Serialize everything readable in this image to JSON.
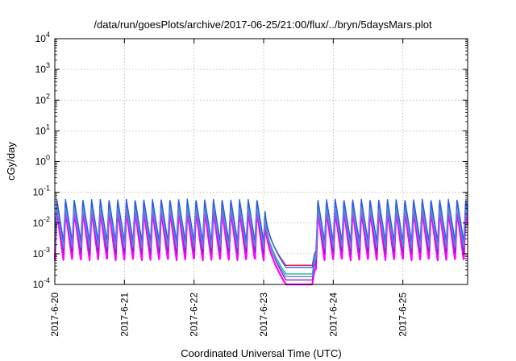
{
  "chart_data": {
    "type": "line",
    "title": "/data/run/goesPlots/archive/2017-06-25/21:00/flux/../bryn/5daysMars.plot",
    "xlabel": "Coordinated Universal Time (UTC)",
    "ylabel": "cGy/day",
    "y_scale": "log",
    "ylim": [
      0.0001,
      10000
    ],
    "xlim": [
      0,
      5.93
    ],
    "x_unit": "days since 2017-6-20 00:00 UTC",
    "grid": true,
    "x_ticks": [
      {
        "value": 0,
        "label": "2017-6-20"
      },
      {
        "value": 1,
        "label": "2017-6-21"
      },
      {
        "value": 2,
        "label": "2017-6-22"
      },
      {
        "value": 3,
        "label": "2017-6-23"
      },
      {
        "value": 4,
        "label": "2017-6-24"
      },
      {
        "value": 5,
        "label": "2017-6-25"
      }
    ],
    "y_ticks": [
      {
        "value": 0.0001,
        "base": "10",
        "exp": "-4"
      },
      {
        "value": 0.001,
        "base": "10",
        "exp": "-3"
      },
      {
        "value": 0.01,
        "base": "10",
        "exp": "-2"
      },
      {
        "value": 0.1,
        "base": "10",
        "exp": "-1"
      },
      {
        "value": 1,
        "base": "10",
        "exp": "0"
      },
      {
        "value": 10,
        "base": "10",
        "exp": "1"
      },
      {
        "value": 100,
        "base": "10",
        "exp": "2"
      },
      {
        "value": 1000,
        "base": "10",
        "exp": "3"
      },
      {
        "value": 10000,
        "base": "10",
        "exp": "4"
      }
    ],
    "oscillation_period_days": 0.125,
    "gap": {
      "start": 3.02,
      "end": 3.7,
      "recover_end": 3.78
    },
    "series": [
      {
        "color": "#ff00ff",
        "peak": 0.025,
        "trough": 0.0006,
        "quiet": 0.0001
      },
      {
        "color": "#e0284a",
        "peak": 0.045,
        "trough": 0.0012,
        "quiet": 0.00042
      },
      {
        "color": "#7b2dbf",
        "peak": 0.04,
        "trough": 0.001,
        "quiet": 0.00014
      },
      {
        "color": "#1fb8a8",
        "peak": 0.035,
        "trough": 0.0018,
        "quiet": 0.00022
      },
      {
        "color": "#2b5ce8",
        "peak": 0.06,
        "trough": 0.0025,
        "quiet": 0.00036
      },
      {
        "color": "#6a7ee0",
        "peak": 0.03,
        "trough": 0.0015,
        "quiet": 0.00018
      }
    ]
  }
}
